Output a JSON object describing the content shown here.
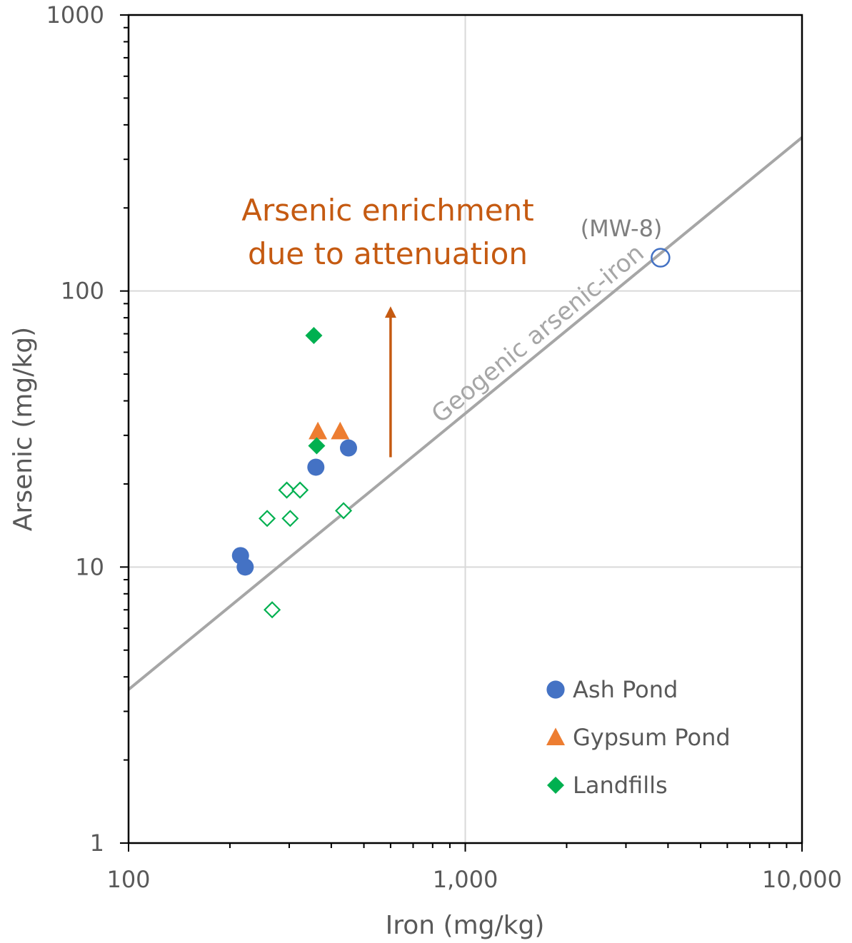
{
  "chart_data": {
    "type": "scatter",
    "xscale": "log",
    "yscale": "log",
    "xlim": [
      100,
      10000
    ],
    "ylim": [
      1,
      1000
    ],
    "xlabel": "Iron (mg/kg)",
    "ylabel": "Arsenic (mg/kg)",
    "x_ticks": [
      100,
      1000,
      10000
    ],
    "x_tick_labels": [
      "100",
      "1,000",
      "10,000"
    ],
    "y_ticks": [
      1,
      10,
      100,
      1000
    ],
    "y_tick_labels": [
      "1",
      "10",
      "100",
      "1000"
    ],
    "grid": true,
    "legend_position": "bottom-right",
    "series": [
      {
        "name": "Ash Pond",
        "marker": "circle",
        "color": "#4472C4",
        "points": [
          {
            "x": 215,
            "y": 11
          },
          {
            "x": 222,
            "y": 10
          },
          {
            "x": 360,
            "y": 23
          },
          {
            "x": 450,
            "y": 27
          }
        ]
      },
      {
        "name": "Gypsum Pond",
        "marker": "triangle",
        "color": "#ED7D31",
        "points": [
          {
            "x": 365,
            "y": 31
          },
          {
            "x": 425,
            "y": 31
          }
        ]
      },
      {
        "name": "Landfills",
        "marker": "diamond",
        "color": "#00B050",
        "points": [
          {
            "x": 355,
            "y": 69
          },
          {
            "x": 362,
            "y": 27.5
          }
        ]
      },
      {
        "marker": "diamond-open",
        "color": "#00B050",
        "points": [
          {
            "x": 295,
            "y": 19
          },
          {
            "x": 323,
            "y": 19
          },
          {
            "x": 258,
            "y": 15
          },
          {
            "x": 302,
            "y": 15
          },
          {
            "x": 435,
            "y": 16
          },
          {
            "x": 267,
            "y": 7
          }
        ]
      },
      {
        "marker": "circle-open",
        "color": "#4472C4",
        "points": [
          {
            "x": 3800,
            "y": 132
          }
        ]
      }
    ],
    "trend_line": {
      "label": "Geogenic arsenic-iron",
      "color": "#A6A6A6",
      "x": [
        100,
        10000
      ],
      "y": [
        3.6,
        360
      ]
    },
    "annotations": {
      "enrichment_line1": "Arsenic enrichment",
      "enrichment_line2": "due to attenuation",
      "enrichment_color": "#C55A11",
      "arrow_x": 600,
      "arrow_y_from": 25,
      "arrow_y_to": 88,
      "point_label": "(MW-8)"
    }
  }
}
